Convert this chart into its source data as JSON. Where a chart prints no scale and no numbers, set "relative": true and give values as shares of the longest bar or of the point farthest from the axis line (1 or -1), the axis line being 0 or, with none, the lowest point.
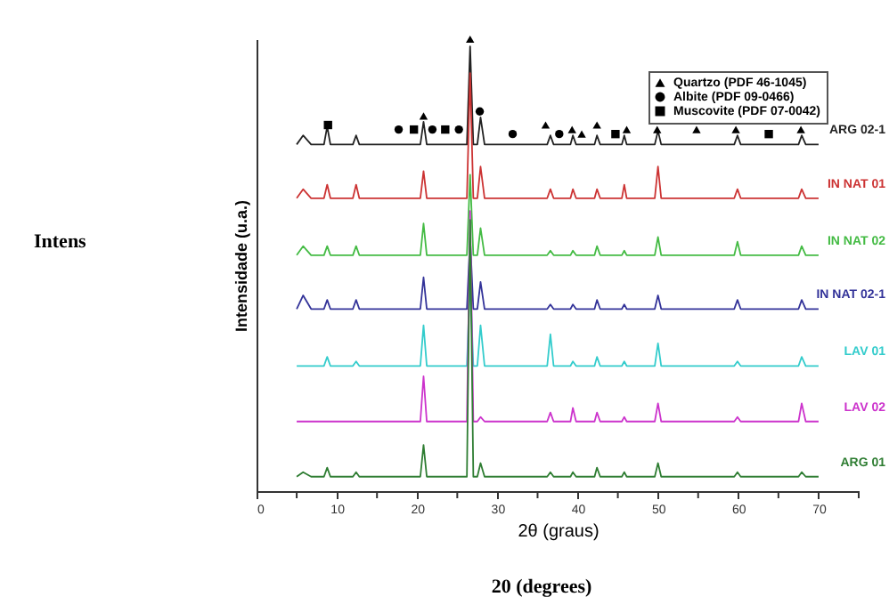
{
  "chart_data": {
    "type": "line",
    "relative": true,
    "xlabel": "2θ (graus)",
    "ylabel": "Intensidade (u.a.)",
    "xlim": [
      0,
      75
    ],
    "xticks": [
      0,
      {
        "value": 5,
        "label": null
      },
      10,
      {
        "value": 15,
        "label": null
      },
      20,
      {
        "value": 25,
        "label": null
      },
      30,
      {
        "value": 35,
        "label": null
      },
      40,
      {
        "value": 45,
        "label": null
      },
      50,
      {
        "value": 55,
        "label": null
      },
      60,
      {
        "value": 65,
        "label": null
      },
      70,
      {
        "value": 75,
        "label": null
      }
    ],
    "x": [
      5,
      5.8,
      6.8,
      8.4,
      8.8,
      9.2,
      12,
      12.4,
      12.8,
      20.4,
      20.8,
      21.2,
      26.2,
      26.6,
      27,
      27.5,
      27.9,
      28.4,
      36.2,
      36.6,
      37,
      39.1,
      39.4,
      39.8,
      42.1,
      42.4,
      42.8,
      45.5,
      45.8,
      46.1,
      49.6,
      50,
      50.4,
      59.5,
      59.9,
      60.3,
      67.5,
      67.9,
      68.4,
      70
    ],
    "grid": false,
    "legend": "top right",
    "marker": "none",
    "line_style": "solid",
    "series": [
      {
        "name": "ARG 02-1",
        "color": "#222222",
        "values": [
          0.767,
          0.787,
          0.767,
          0.767,
          0.807,
          0.767,
          0.767,
          0.787,
          0.767,
          0.767,
          0.817,
          0.767,
          0.767,
          0.984,
          0.767,
          0.767,
          0.827,
          0.767,
          0.767,
          0.787,
          0.767,
          0.767,
          0.787,
          0.767,
          0.767,
          0.787,
          0.767,
          0.767,
          0.787,
          0.767,
          0.767,
          0.797,
          0.767,
          0.767,
          0.787,
          0.767,
          0.767,
          0.787,
          0.767,
          0.767
        ]
      },
      {
        "name": "IN NAT 01",
        "color": "#cc3333",
        "values": [
          0.648,
          0.668,
          0.648,
          0.648,
          0.678,
          0.648,
          0.648,
          0.678,
          0.648,
          0.648,
          0.708,
          0.648,
          0.648,
          0.925,
          0.648,
          0.648,
          0.718,
          0.648,
          0.648,
          0.668,
          0.648,
          0.648,
          0.668,
          0.648,
          0.648,
          0.668,
          0.648,
          0.648,
          0.678,
          0.648,
          0.648,
          0.718,
          0.648,
          0.648,
          0.668,
          0.648,
          0.648,
          0.668,
          0.648,
          0.648
        ]
      },
      {
        "name": "IN NAT 02",
        "color": "#44bb44",
        "values": [
          0.522,
          0.542,
          0.522,
          0.522,
          0.542,
          0.522,
          0.522,
          0.542,
          0.522,
          0.522,
          0.592,
          0.522,
          0.522,
          0.7,
          0.522,
          0.522,
          0.582,
          0.522,
          0.522,
          0.532,
          0.522,
          0.522,
          0.532,
          0.522,
          0.522,
          0.542,
          0.522,
          0.522,
          0.532,
          0.522,
          0.522,
          0.562,
          0.522,
          0.522,
          0.552,
          0.522,
          0.522,
          0.542,
          0.522,
          0.522
        ]
      },
      {
        "name": "IN NAT 02-1",
        "color": "#333399",
        "values": [
          0.403,
          0.433,
          0.403,
          0.403,
          0.423,
          0.403,
          0.403,
          0.423,
          0.403,
          0.403,
          0.473,
          0.403,
          0.403,
          0.56,
          0.403,
          0.403,
          0.463,
          0.403,
          0.403,
          0.413,
          0.403,
          0.403,
          0.413,
          0.403,
          0.403,
          0.423,
          0.403,
          0.403,
          0.413,
          0.403,
          0.403,
          0.433,
          0.403,
          0.403,
          0.423,
          0.403,
          0.403,
          0.423,
          0.403,
          0.403
        ]
      },
      {
        "name": "LAV 01",
        "color": "#33cccc",
        "values": [
          0.277,
          0.277,
          0.277,
          0.277,
          0.297,
          0.277,
          0.277,
          0.287,
          0.277,
          0.277,
          0.367,
          0.277,
          0.277,
          0.47,
          0.277,
          0.277,
          0.367,
          0.277,
          0.277,
          0.347,
          0.277,
          0.277,
          0.287,
          0.277,
          0.277,
          0.297,
          0.277,
          0.277,
          0.287,
          0.277,
          0.277,
          0.327,
          0.277,
          0.277,
          0.287,
          0.277,
          0.277,
          0.297,
          0.277,
          0.277
        ]
      },
      {
        "name": "LAV 02",
        "color": "#cc33cc",
        "values": [
          0.154,
          0.154,
          0.154,
          0.154,
          0.154,
          0.154,
          0.154,
          0.154,
          0.154,
          0.154,
          0.254,
          0.154,
          0.154,
          0.62,
          0.154,
          0.154,
          0.164,
          0.154,
          0.154,
          0.174,
          0.154,
          0.154,
          0.184,
          0.154,
          0.154,
          0.174,
          0.154,
          0.154,
          0.164,
          0.154,
          0.154,
          0.194,
          0.154,
          0.154,
          0.164,
          0.154,
          0.154,
          0.194,
          0.154,
          0.154
        ]
      },
      {
        "name": "ARG 01",
        "color": "#2e7d32",
        "values": [
          0.032,
          0.042,
          0.032,
          0.032,
          0.052,
          0.032,
          0.032,
          0.042,
          0.032,
          0.032,
          0.102,
          0.032,
          0.032,
          0.6,
          0.032,
          0.032,
          0.062,
          0.032,
          0.032,
          0.042,
          0.032,
          0.032,
          0.042,
          0.032,
          0.032,
          0.052,
          0.032,
          0.032,
          0.042,
          0.032,
          0.032,
          0.062,
          0.032,
          0.032,
          0.042,
          0.032,
          0.032,
          0.042,
          0.032,
          0.032
        ]
      },
      {
        "name": "Quartzo (PDF 46-1045)",
        "type": "scatter",
        "marker": "triangle",
        "color": "#000000",
        "x": [
          20.8,
          26.6,
          36.0,
          39.3,
          40.5,
          42.4,
          46.1,
          49.9,
          54.8,
          59.7,
          67.8
        ],
        "values": [
          0.83,
          1.0,
          0.81,
          0.8,
          0.79,
          0.81,
          0.8,
          0.8,
          0.8,
          0.8,
          0.8
        ]
      },
      {
        "name": "Albite (PDF 09-0466)",
        "type": "scatter",
        "marker": "circle",
        "color": "#000000",
        "x": [
          17.7,
          21.9,
          25.2,
          27.8,
          31.9,
          37.7
        ],
        "values": [
          0.8,
          0.8,
          0.8,
          0.84,
          0.79,
          0.79
        ]
      },
      {
        "name": "Muscovite (PDF 07-0042)",
        "type": "scatter",
        "marker": "square",
        "color": "#000000",
        "x": [
          8.9,
          19.6,
          23.5,
          44.7,
          63.8
        ],
        "values": [
          0.81,
          0.8,
          0.8,
          0.79,
          0.79
        ]
      }
    ],
    "annotations": [
      "Intens",
      "20 (degrees)"
    ]
  }
}
